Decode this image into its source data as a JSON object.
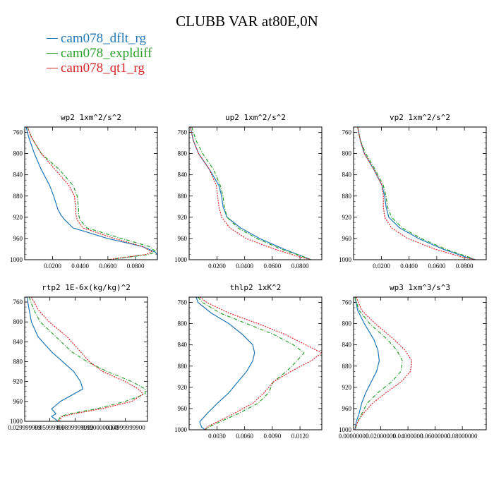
{
  "title": "CLUBB VAR at80E,0N",
  "legend": [
    {
      "name": "cam078_dflt_rg",
      "color": "#1f77b4",
      "dash": ""
    },
    {
      "name": "cam078_expldiff",
      "color": "#2ca02c",
      "dash": "5,2,1,2"
    },
    {
      "name": "cam078_qt1_rg",
      "color": "#d62728",
      "dash": "2,1.5"
    }
  ],
  "chart_data": [
    {
      "type": "line",
      "title": "wp2   1xm^2/s^2",
      "ylim": [
        1000,
        750
      ],
      "yticks": [
        "760",
        "800",
        "840",
        "880",
        "920",
        "960",
        "1000"
      ],
      "xlim": [
        0,
        0.096
      ],
      "xticks": [
        "0.0200",
        "0.0400",
        "0.0600",
        "0.0800"
      ],
      "series": [
        {
          "y": [
            750,
            770,
            800,
            830,
            860,
            880,
            905,
            915,
            925,
            940,
            960,
            975,
            985,
            990,
            1000
          ],
          "x": [
            0.001,
            0.003,
            0.007,
            0.012,
            0.018,
            0.021,
            0.024,
            0.026,
            0.029,
            0.035,
            0.06,
            0.085,
            0.094,
            0.096,
            0.096
          ]
        },
        {
          "y": [
            750,
            770,
            800,
            830,
            860,
            880,
            905,
            915,
            925,
            940,
            960,
            975,
            985,
            990,
            1000
          ],
          "x": [
            0.002,
            0.005,
            0.012,
            0.025,
            0.035,
            0.038,
            0.039,
            0.039,
            0.04,
            0.045,
            0.07,
            0.09,
            0.095,
            0.09,
            0.06
          ]
        },
        {
          "y": [
            750,
            770,
            800,
            830,
            860,
            880,
            905,
            915,
            925,
            940,
            960,
            975,
            985,
            990,
            1000
          ],
          "x": [
            0.002,
            0.005,
            0.012,
            0.022,
            0.032,
            0.036,
            0.037,
            0.037,
            0.038,
            0.042,
            0.065,
            0.085,
            0.092,
            0.088,
            0.06
          ]
        }
      ]
    },
    {
      "type": "line",
      "title": "up2   1xm^2/s^2",
      "ylim": [
        1000,
        750
      ],
      "yticks": [
        "760",
        "800",
        "840",
        "880",
        "920",
        "960",
        "1000"
      ],
      "xlim": [
        0,
        0.098
      ],
      "xticks": [
        "0.0200",
        "0.0400",
        "0.0600",
        "0.0800"
      ],
      "series": [
        {
          "y": [
            750,
            775,
            800,
            830,
            860,
            880,
            900,
            920,
            940,
            960,
            980,
            995,
            1000
          ],
          "x": [
            0.001,
            0.003,
            0.007,
            0.015,
            0.022,
            0.024,
            0.025,
            0.028,
            0.038,
            0.052,
            0.07,
            0.085,
            0.09
          ]
        },
        {
          "y": [
            750,
            775,
            800,
            830,
            860,
            880,
            900,
            920,
            940,
            960,
            980,
            995,
            1000
          ],
          "x": [
            0.002,
            0.005,
            0.01,
            0.018,
            0.023,
            0.025,
            0.026,
            0.028,
            0.036,
            0.05,
            0.068,
            0.085,
            0.09
          ]
        },
        {
          "y": [
            750,
            775,
            800,
            830,
            860,
            880,
            900,
            920,
            940,
            960,
            980,
            995,
            1000
          ],
          "x": [
            0.001,
            0.003,
            0.007,
            0.015,
            0.02,
            0.021,
            0.022,
            0.024,
            0.03,
            0.042,
            0.063,
            0.082,
            0.09
          ]
        }
      ]
    },
    {
      "type": "line",
      "title": "vp2   1xm^2/s^2",
      "ylim": [
        1000,
        750
      ],
      "yticks": [
        "760",
        "800",
        "840",
        "880",
        "920",
        "960",
        "1000"
      ],
      "xlim": [
        0,
        0.098
      ],
      "xticks": [
        "0.0200",
        "0.0400",
        "0.0600",
        "0.0800"
      ],
      "series": [
        {
          "y": [
            750,
            775,
            800,
            830,
            860,
            880,
            900,
            920,
            940,
            960,
            980,
            995,
            1000
          ],
          "x": [
            0.003,
            0.005,
            0.008,
            0.015,
            0.021,
            0.023,
            0.024,
            0.026,
            0.034,
            0.048,
            0.066,
            0.083,
            0.09
          ]
        },
        {
          "y": [
            750,
            775,
            800,
            830,
            860,
            880,
            900,
            920,
            940,
            960,
            980,
            995,
            1000
          ],
          "x": [
            0.003,
            0.005,
            0.009,
            0.016,
            0.022,
            0.024,
            0.025,
            0.028,
            0.036,
            0.05,
            0.068,
            0.085,
            0.09
          ]
        },
        {
          "y": [
            750,
            775,
            800,
            830,
            860,
            880,
            900,
            920,
            940,
            960,
            980,
            995,
            1000
          ],
          "x": [
            0.003,
            0.005,
            0.008,
            0.015,
            0.021,
            0.022,
            0.022,
            0.023,
            0.028,
            0.04,
            0.06,
            0.08,
            0.09
          ]
        }
      ]
    },
    {
      "type": "line",
      "title": "rtp2   1E-6x(kg/kg)^2",
      "ylim": [
        1000,
        750
      ],
      "yticks": [
        "760",
        "800",
        "840",
        "880",
        "920",
        "960",
        "1000"
      ],
      "xlim": [
        0,
        0.055
      ],
      "xticks": [
        "0.029999999",
        "0.05999999",
        "0.0899999999",
        "0.1200000000",
        "0.14999999900"
      ],
      "series": [
        {
          "y": [
            750,
            775,
            800,
            830,
            860,
            880,
            900,
            920,
            935,
            945,
            960,
            975,
            985,
            990,
            1000
          ],
          "x": [
            0.001,
            0.002,
            0.003,
            0.006,
            0.012,
            0.017,
            0.022,
            0.025,
            0.026,
            0.022,
            0.016,
            0.012,
            0.014,
            0.012,
            0.015
          ]
        },
        {
          "y": [
            750,
            775,
            800,
            830,
            860,
            880,
            900,
            920,
            935,
            945,
            960,
            975,
            985,
            990,
            1000
          ],
          "x": [
            0.002,
            0.004,
            0.007,
            0.014,
            0.021,
            0.028,
            0.037,
            0.048,
            0.054,
            0.054,
            0.045,
            0.032,
            0.02,
            0.016,
            0.015
          ]
        },
        {
          "y": [
            750,
            775,
            800,
            830,
            860,
            880,
            900,
            920,
            935,
            945,
            960,
            975,
            985,
            990,
            1000
          ],
          "x": [
            0.003,
            0.006,
            0.011,
            0.019,
            0.025,
            0.029,
            0.035,
            0.045,
            0.051,
            0.053,
            0.048,
            0.034,
            0.022,
            0.017,
            0.015
          ]
        }
      ]
    },
    {
      "type": "line",
      "title": "thlp2   1xK^2",
      "ylim": [
        1000,
        750
      ],
      "yticks": [
        "760",
        "800",
        "840",
        "880",
        "920",
        "960",
        "1000"
      ],
      "xlim": [
        0,
        0.015
      ],
      "xticks": [
        "0.0030",
        "0.0060",
        "0.0090",
        "0.0120"
      ],
      "series": [
        {
          "y": [
            750,
            760,
            780,
            800,
            820,
            840,
            855,
            870,
            890,
            910,
            930,
            950,
            970,
            985,
            995,
            1000
          ],
          "x": [
            0.0008,
            0.001,
            0.0025,
            0.0045,
            0.006,
            0.0072,
            0.0074,
            0.0072,
            0.0065,
            0.0055,
            0.0045,
            0.0032,
            0.002,
            0.0012,
            0.0014,
            0.0018
          ]
        },
        {
          "y": [
            750,
            760,
            780,
            800,
            820,
            840,
            855,
            870,
            890,
            910,
            930,
            950,
            970,
            985,
            995,
            1000
          ],
          "x": [
            0.001,
            0.0015,
            0.0035,
            0.0065,
            0.0095,
            0.0118,
            0.013,
            0.0122,
            0.011,
            0.0095,
            0.009,
            0.0078,
            0.0055,
            0.0035,
            0.0022,
            0.0018
          ]
        },
        {
          "y": [
            750,
            760,
            780,
            800,
            820,
            840,
            855,
            870,
            890,
            910,
            930,
            950,
            970,
            985,
            995,
            1000
          ],
          "x": [
            0.0012,
            0.002,
            0.0045,
            0.0078,
            0.0108,
            0.0132,
            0.015,
            0.0138,
            0.0115,
            0.0095,
            0.0085,
            0.0072,
            0.005,
            0.0032,
            0.002,
            0.0018
          ]
        }
      ]
    },
    {
      "type": "line",
      "title": "wp3   1xm^3/s^3",
      "ylim": [
        1000,
        750
      ],
      "yticks": [
        "760",
        "800",
        "840",
        "880",
        "920",
        "960",
        "1000"
      ],
      "xlim": [
        0,
        0.098
      ],
      "xticks": [
        "0.00000000",
        "0.02000000",
        "0.04000000",
        "0.06000000",
        "0.08000000"
      ],
      "series": [
        {
          "y": [
            750,
            775,
            800,
            830,
            850,
            870,
            890,
            910,
            930,
            950,
            970,
            985,
            1000
          ],
          "x": [
            0.001,
            0.003,
            0.008,
            0.015,
            0.018,
            0.019,
            0.017,
            0.013,
            0.009,
            0.006,
            0.004,
            0.002,
            0.001
          ]
        },
        {
          "y": [
            750,
            775,
            800,
            830,
            850,
            870,
            890,
            910,
            930,
            950,
            970,
            985,
            1000
          ],
          "x": [
            0.001,
            0.004,
            0.012,
            0.025,
            0.032,
            0.036,
            0.035,
            0.028,
            0.018,
            0.01,
            0.006,
            0.003,
            0.001
          ]
        },
        {
          "y": [
            750,
            775,
            800,
            830,
            850,
            870,
            890,
            910,
            930,
            950,
            970,
            985,
            1000
          ],
          "x": [
            0.002,
            0.006,
            0.016,
            0.03,
            0.038,
            0.043,
            0.042,
            0.035,
            0.024,
            0.014,
            0.007,
            0.003,
            0.001
          ]
        }
      ]
    }
  ]
}
